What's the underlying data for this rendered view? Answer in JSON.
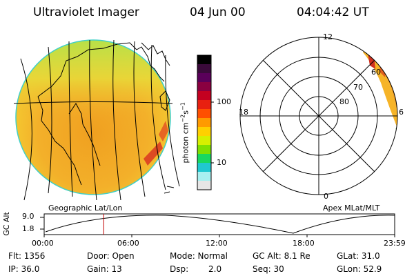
{
  "header": {
    "instrument": "Ultraviolet Imager",
    "date": "04 Jun 00",
    "time": "04:04:42 UT"
  },
  "colorbar": {
    "unit_label": "photon cm",
    "unit_exp1": "−2",
    "unit_s": "s",
    "unit_exp2": "−1",
    "ticks": [
      "100",
      "10"
    ],
    "colors": [
      "#000000",
      "#3a0a3a",
      "#5a005a",
      "#8a0040",
      "#c40020",
      "#e82010",
      "#ff5000",
      "#ff9a00",
      "#ffd000",
      "#d6f000",
      "#7fe000",
      "#18d860",
      "#20c8d0",
      "#a8f0f0",
      "#e6e6e6"
    ]
  },
  "polar": {
    "mlt_labels": [
      "12",
      "18",
      "6",
      "0"
    ],
    "lat_labels": [
      "60",
      "70",
      "80"
    ],
    "caption": "Apex MLat/MLT"
  },
  "geo_caption": "Geographic Lat/Lon",
  "altitude": {
    "axis_title": "GC Alt",
    "y_ticks": [
      "9.0",
      "1.8"
    ],
    "x_ticks": [
      "00:00",
      "06:00",
      "12:00",
      "18:00",
      "23:59"
    ],
    "current_time_fraction": 0.17
  },
  "info": {
    "flt": "Flt: 1356",
    "door": "Door: Open",
    "mode": "Mode: Normal",
    "gcalt": "GC Alt: 8.1 Re",
    "glat": "GLat: 31.0",
    "ip": "IP: 36.0",
    "gain": "Gain: 13",
    "dsp_label": "Dsp:",
    "dsp_value": "2.0",
    "seq": "Seq: 30",
    "glon": "GLon: 52.9"
  },
  "colors": {
    "disk_fill": "#f2a020",
    "disk_top": "#c8e040",
    "disk_rim": "#f0d030",
    "aurora_high": "#d02020",
    "marker": "#c00000"
  }
}
